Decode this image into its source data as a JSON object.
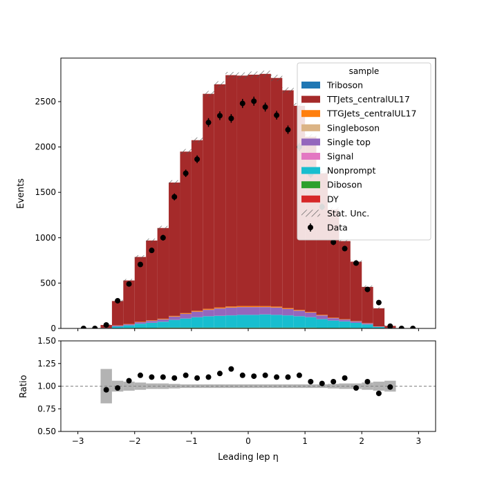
{
  "chart_data": [
    {
      "type": "bar",
      "stacked": true,
      "ylabel": "Events",
      "xlim": [
        -3.3,
        3.3
      ],
      "ylim": [
        0,
        2980
      ],
      "yticks": [
        0,
        500,
        1000,
        1500,
        2000,
        2500
      ],
      "ytick_labels": [
        "0",
        "500",
        "1000",
        "1500",
        "2000",
        "2500"
      ],
      "bin_edges": [
        -2.6,
        -2.4,
        -2.2,
        -2.0,
        -1.8,
        -1.6,
        -1.4,
        -1.2,
        -1.0,
        -0.8,
        -0.6,
        -0.4,
        -0.2,
        0.0,
        0.2,
        0.4,
        0.6,
        0.8,
        1.0,
        1.2,
        1.4,
        1.6,
        1.8,
        2.0,
        2.2,
        2.4,
        2.6
      ],
      "legend": {
        "title": "sample",
        "placement": "upper right",
        "entries": [
          "Triboson",
          "TTJets_centralUL17",
          "TTGJets_centralUL17",
          "Singleboson",
          "Single top",
          "Signal",
          "Nonprompt",
          "Diboson",
          "DY",
          "Stat. Unc.",
          "Data"
        ]
      },
      "series": [
        {
          "name": "DY",
          "color": "#d62728",
          "values": [
            1,
            2,
            3,
            4,
            4,
            5,
            5,
            5,
            5,
            5,
            5,
            5,
            5,
            5,
            5,
            5,
            5,
            5,
            5,
            4,
            4,
            4,
            3,
            2,
            1,
            1
          ]
        },
        {
          "name": "Diboson",
          "color": "#2ca02c",
          "values": [
            1,
            2,
            3,
            3,
            3,
            4,
            4,
            4,
            4,
            4,
            4,
            4,
            4,
            4,
            4,
            4,
            4,
            4,
            4,
            3,
            3,
            3,
            3,
            2,
            1,
            1
          ]
        },
        {
          "name": "Nonprompt",
          "color": "#17becf",
          "values": [
            3,
            18,
            28,
            45,
            55,
            65,
            85,
            100,
            115,
            125,
            130,
            135,
            140,
            140,
            145,
            140,
            135,
            125,
            115,
            95,
            80,
            70,
            55,
            40,
            15,
            3
          ]
        },
        {
          "name": "Signal",
          "color": "#e377c2",
          "values": [
            0,
            1,
            1,
            1,
            1,
            1,
            1,
            1,
            1,
            1,
            1,
            1,
            1,
            1,
            1,
            1,
            1,
            1,
            1,
            1,
            1,
            1,
            1,
            1,
            1,
            0
          ]
        },
        {
          "name": "Single top",
          "color": "#9467bd",
          "values": [
            1,
            8,
            10,
            15,
            20,
            25,
            35,
            50,
            60,
            70,
            80,
            85,
            85,
            85,
            80,
            80,
            70,
            60,
            50,
            40,
            25,
            20,
            15,
            10,
            3,
            1
          ]
        },
        {
          "name": "Singleboson",
          "color": "#dbb486",
          "values": [
            0,
            1,
            1,
            1,
            1,
            1,
            1,
            1,
            1,
            1,
            1,
            1,
            1,
            1,
            1,
            1,
            1,
            1,
            1,
            1,
            1,
            1,
            1,
            1,
            0,
            0
          ]
        },
        {
          "name": "TTGJets_centralUL17",
          "color": "#ff7f0e",
          "values": [
            0,
            2,
            3,
            4,
            5,
            6,
            7,
            8,
            9,
            10,
            10,
            11,
            11,
            11,
            10,
            10,
            9,
            8,
            7,
            6,
            5,
            4,
            3,
            2,
            1,
            0
          ]
        },
        {
          "name": "TTJets_centralUL17",
          "color": "#a52a2a",
          "values": [
            32,
            268,
            480,
            715,
            880,
            1000,
            1470,
            1780,
            1880,
            2370,
            2460,
            2550,
            2540,
            2550,
            2560,
            2520,
            2400,
            2250,
            1930,
            1560,
            1190,
            860,
            655,
            400,
            200,
            22
          ]
        },
        {
          "name": "Triboson",
          "color": "#1f77b4",
          "values": [
            0,
            0,
            0,
            0,
            0,
            0,
            0,
            0,
            0,
            0,
            0,
            0,
            0,
            0,
            0,
            0,
            0,
            0,
            0,
            0,
            0,
            0,
            0,
            0,
            0,
            0
          ]
        }
      ],
      "stat_unc": [
        8,
        12,
        16,
        20,
        22,
        24,
        26,
        28,
        30,
        32,
        34,
        35,
        35,
        35,
        35,
        34,
        32,
        30,
        28,
        26,
        24,
        22,
        20,
        16,
        12,
        8
      ],
      "data": {
        "name": "Data",
        "x": [
          -2.9,
          -2.7,
          -2.5,
          -2.3,
          -2.1,
          -1.9,
          -1.7,
          -1.5,
          -1.3,
          -1.1,
          -0.9,
          -0.7,
          -0.5,
          -0.3,
          -0.1,
          0.1,
          0.3,
          0.5,
          0.7,
          0.9,
          1.1,
          1.3,
          1.5,
          1.7,
          1.9,
          2.1,
          2.3,
          2.5,
          2.7,
          2.9
        ],
        "y": [
          0,
          0,
          38,
          305,
          490,
          705,
          860,
          1000,
          1450,
          1710,
          1865,
          2270,
          2345,
          2315,
          2480,
          2505,
          2440,
          2350,
          2190,
          2000,
          1700,
          1340,
          950,
          880,
          720,
          430,
          285,
          25,
          0,
          0
        ],
        "err": [
          0,
          0,
          6,
          17,
          22,
          27,
          29,
          32,
          38,
          41,
          43,
          48,
          48,
          48,
          50,
          50,
          49,
          48,
          47,
          45,
          41,
          37,
          31,
          30,
          27,
          21,
          17,
          5,
          0,
          0
        ]
      }
    },
    {
      "type": "scatter",
      "xlabel": "Leading lep η",
      "ylabel": "Ratio",
      "xlim": [
        -3.3,
        3.3
      ],
      "ylim": [
        0.5,
        1.5
      ],
      "xticks": [
        -3,
        -2,
        -1,
        0,
        1,
        2,
        3
      ],
      "xtick_labels": [
        "−3",
        "−2",
        "−1",
        "0",
        "1",
        "2",
        "3"
      ],
      "yticks": [
        0.5,
        0.75,
        1.0,
        1.25,
        1.5
      ],
      "ytick_labels": [
        "0.50",
        "0.75",
        "1.00",
        "1.25",
        "1.50"
      ],
      "reference_line": 1.0,
      "unc_band": [
        0.19,
        0.06,
        0.05,
        0.04,
        0.03,
        0.03,
        0.025,
        0.02,
        0.02,
        0.02,
        0.02,
        0.02,
        0.02,
        0.02,
        0.02,
        0.02,
        0.02,
        0.02,
        0.02,
        0.02,
        0.025,
        0.03,
        0.03,
        0.04,
        0.05,
        0.06
      ],
      "ratio": {
        "x": [
          -2.5,
          -2.3,
          -2.1,
          -1.9,
          -1.7,
          -1.5,
          -1.3,
          -1.1,
          -0.9,
          -0.7,
          -0.5,
          -0.3,
          -0.1,
          0.1,
          0.3,
          0.5,
          0.7,
          0.9,
          1.1,
          1.3,
          1.5,
          1.7,
          1.9,
          2.1,
          2.3,
          2.5
        ],
        "y": [
          0.96,
          0.98,
          1.06,
          1.12,
          1.1,
          1.1,
          1.09,
          1.12,
          1.09,
          1.1,
          1.14,
          1.19,
          1.12,
          1.11,
          1.12,
          1.1,
          1.1,
          1.12,
          1.05,
          1.03,
          1.05,
          1.09,
          0.98,
          1.05,
          0.92,
          0.99
        ]
      }
    }
  ]
}
